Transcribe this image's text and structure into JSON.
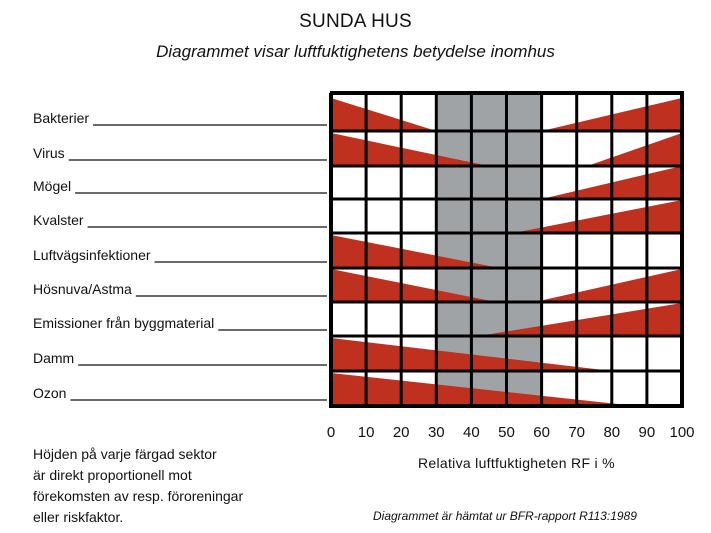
{
  "header": {
    "title": "SUNDA HUS",
    "subtitle": "Diagrammet visar luftfuktighetens betydelse inomhus"
  },
  "footer": {
    "note_lines": [
      "Höjden på varje färgad sektor",
      "är direkt proportionell mot",
      "förekomsten av resp. föroreningar",
      "eller riskfaktor."
    ],
    "source": "Diagrammet är hämtat ur BFR-rapport R113:1989"
  },
  "chart_data": {
    "type": "bar",
    "xlabel": "Relativa luftfuktigheten RF i %",
    "x_ticks": [
      "0",
      "10",
      "20",
      "30",
      "40",
      "50",
      "60",
      "70",
      "80",
      "90",
      "100"
    ],
    "xlim": [
      0,
      100
    ],
    "optimal_zone": [
      30,
      60
    ],
    "grid": true,
    "colors": {
      "risk": "#c0301f",
      "optimal_zone": "#a0a3a5",
      "grid": "#000000"
    },
    "categories": [
      "Bakterier",
      "Virus",
      "Mögel",
      "Kvalster",
      "Luftvägsinfektioner",
      "Hösnuva/Astma",
      "Emissioner från byggmaterial",
      "Damm",
      "Ozon"
    ],
    "series": [
      {
        "low_humidity_end": 30,
        "high_humidity_start": 60
      },
      {
        "low_humidity_end": 45,
        "high_humidity_start": 73
      },
      {
        "low_humidity_end": null,
        "high_humidity_start": 60
      },
      {
        "low_humidity_end": null,
        "high_humidity_start": 52
      },
      {
        "low_humidity_end": 48,
        "high_humidity_start": null
      },
      {
        "low_humidity_end": 47,
        "high_humidity_start": 58
      },
      {
        "low_humidity_end": null,
        "high_humidity_start": 42
      },
      {
        "low_humidity_end": 80,
        "high_humidity_start": null
      },
      {
        "low_humidity_end": 87,
        "high_humidity_start": null
      }
    ]
  }
}
